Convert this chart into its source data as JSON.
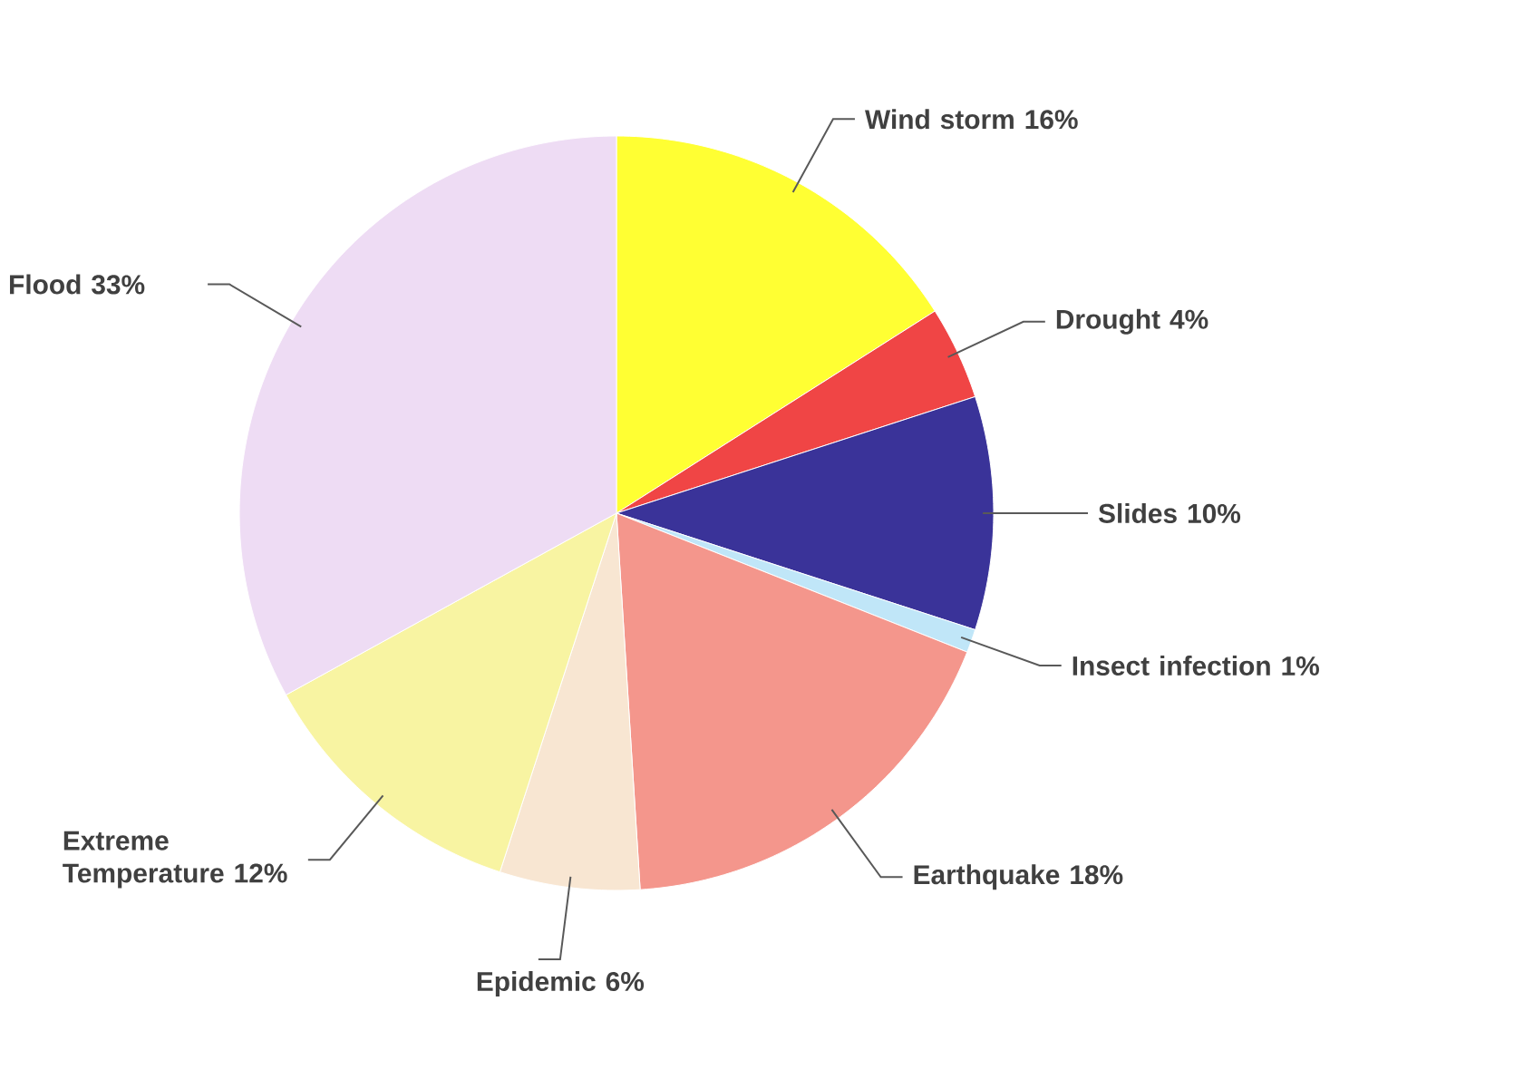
{
  "chart_data": {
    "type": "pie",
    "categories": [
      "Wind storm",
      "Drought",
      "Slides",
      "Insect infection",
      "Earthquake",
      "Epidemic",
      "Extreme Temperature",
      "Flood"
    ],
    "values": [
      16,
      4,
      10,
      1,
      18,
      6,
      12,
      33
    ],
    "value_labels": [
      "16%",
      "4%",
      "10%",
      "1%",
      "18%",
      "6%",
      "12%",
      "33%"
    ],
    "colors": [
      "#ffff33",
      "#f04545",
      "#3a3399",
      "#c0e6f8",
      "#f4968c",
      "#f8e6d2",
      "#f8f4a2",
      "#eedcf4"
    ]
  }
}
